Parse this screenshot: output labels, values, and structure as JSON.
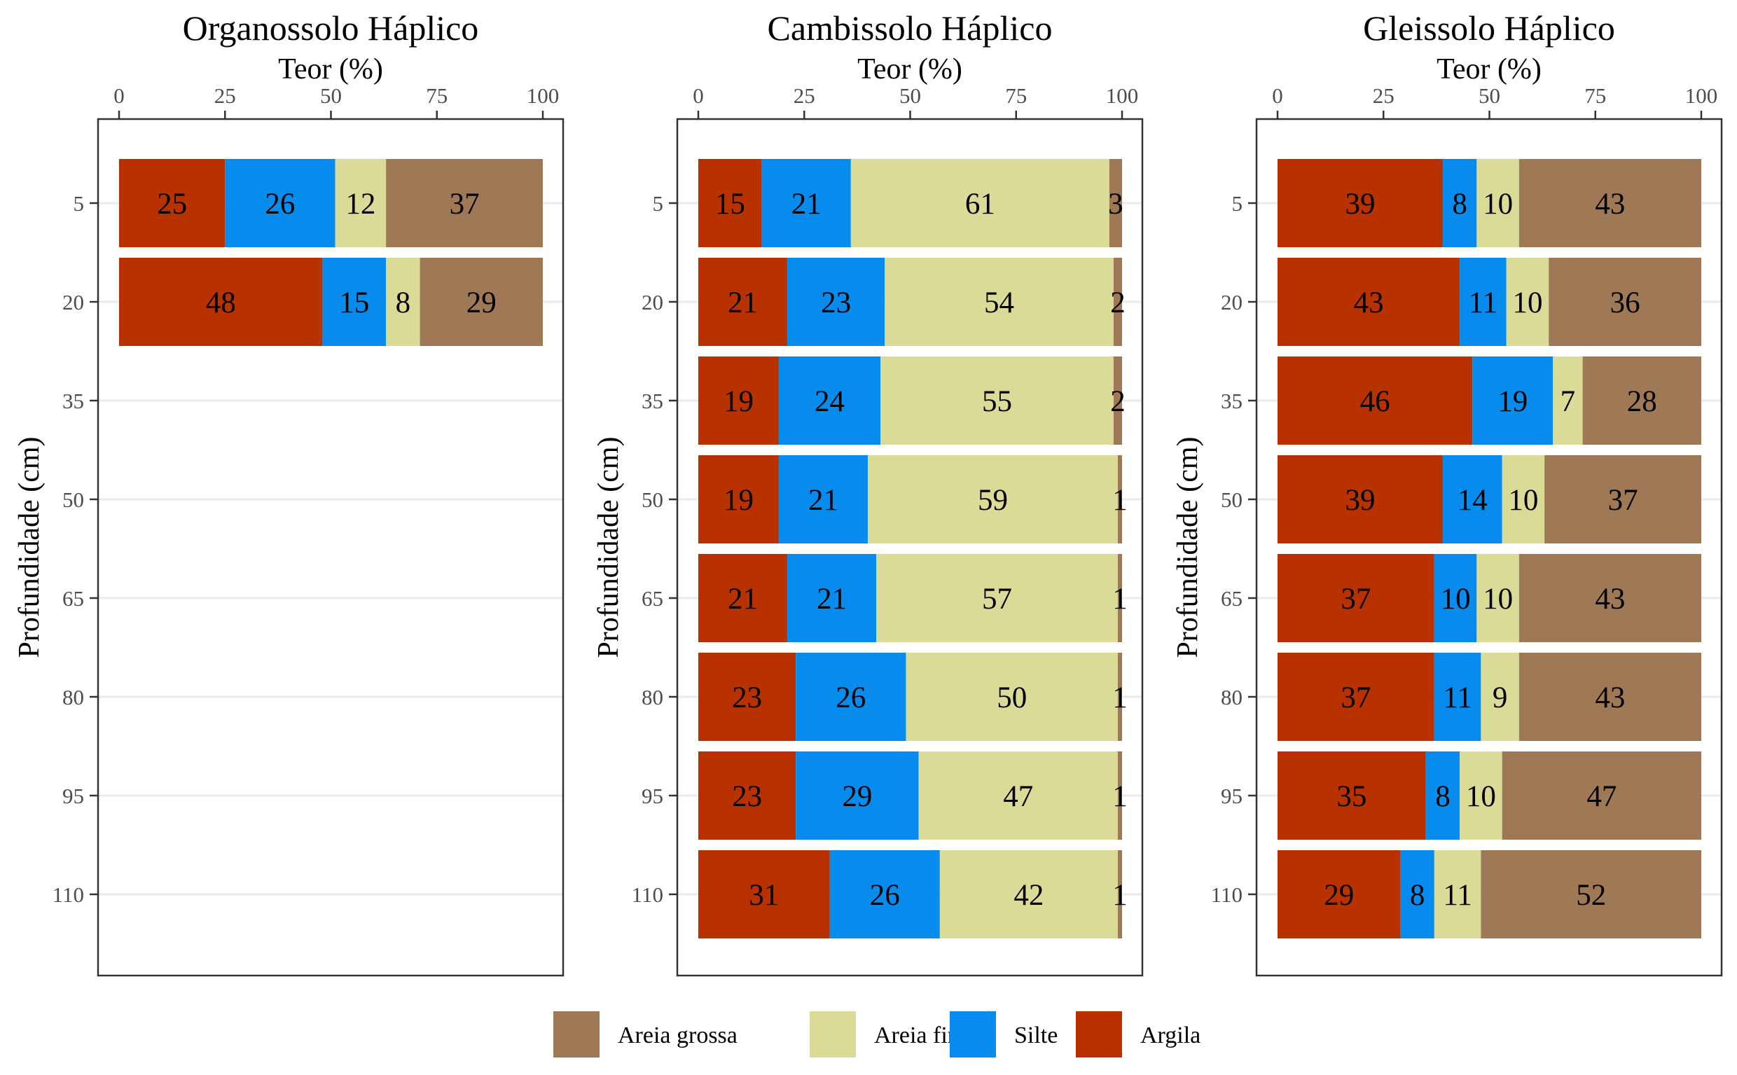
{
  "chart_data": {
    "type": "bar",
    "orientation": "horizontal",
    "stacked": true,
    "xlabel": "Teor (%)",
    "ylabel": "Profundidade (cm)",
    "xlim": [
      0,
      100
    ],
    "xticks": [
      0,
      25,
      50,
      75,
      100
    ],
    "yticks": [
      5,
      20,
      35,
      50,
      65,
      80,
      95,
      110
    ],
    "grid": "horizontal major lines",
    "legend_position": "bottom",
    "legend": [
      "Areia grossa",
      "Areia fina",
      "Silte",
      "Argila"
    ],
    "colors": {
      "Argila": "#b83200",
      "Silte": "#078cee",
      "Areia fina": "#dadb97",
      "Areia grossa": "#9f7856",
      "grid": "#ebebeb",
      "panel_border": "#333333"
    },
    "stack_order": [
      "Argila",
      "Silte",
      "Areia fina",
      "Areia grossa"
    ],
    "panels": [
      {
        "title": "Organossolo Háplico",
        "depths": [
          5,
          20
        ],
        "series": [
          {
            "name": "Argila",
            "values": [
              25,
              48
            ]
          },
          {
            "name": "Silte",
            "values": [
              26,
              15
            ]
          },
          {
            "name": "Areia fina",
            "values": [
              12,
              8
            ]
          },
          {
            "name": "Areia grossa",
            "values": [
              37,
              29
            ]
          }
        ]
      },
      {
        "title": "Cambissolo Háplico",
        "depths": [
          5,
          20,
          35,
          50,
          65,
          80,
          95,
          110
        ],
        "series": [
          {
            "name": "Argila",
            "values": [
              15,
              21,
              19,
              19,
              21,
              23,
              23,
              31
            ]
          },
          {
            "name": "Silte",
            "values": [
              21,
              23,
              24,
              21,
              21,
              26,
              29,
              26
            ]
          },
          {
            "name": "Areia fina",
            "values": [
              61,
              54,
              55,
              59,
              57,
              50,
              47,
              42
            ]
          },
          {
            "name": "Areia grossa",
            "values": [
              3,
              2,
              2,
              1,
              1,
              1,
              1,
              1
            ]
          }
        ]
      },
      {
        "title": "Gleissolo Háplico",
        "depths": [
          5,
          20,
          35,
          50,
          65,
          80,
          95,
          110
        ],
        "series": [
          {
            "name": "Argila",
            "values": [
              39,
              43,
              46,
              39,
              37,
              37,
              35,
              29
            ]
          },
          {
            "name": "Silte",
            "values": [
              8,
              11,
              19,
              14,
              10,
              11,
              8,
              8
            ]
          },
          {
            "name": "Areia fina",
            "values": [
              10,
              10,
              7,
              10,
              10,
              9,
              10,
              11
            ]
          },
          {
            "name": "Areia grossa",
            "values": [
              43,
              36,
              28,
              37,
              43,
              43,
              47,
              52
            ]
          }
        ]
      }
    ]
  }
}
